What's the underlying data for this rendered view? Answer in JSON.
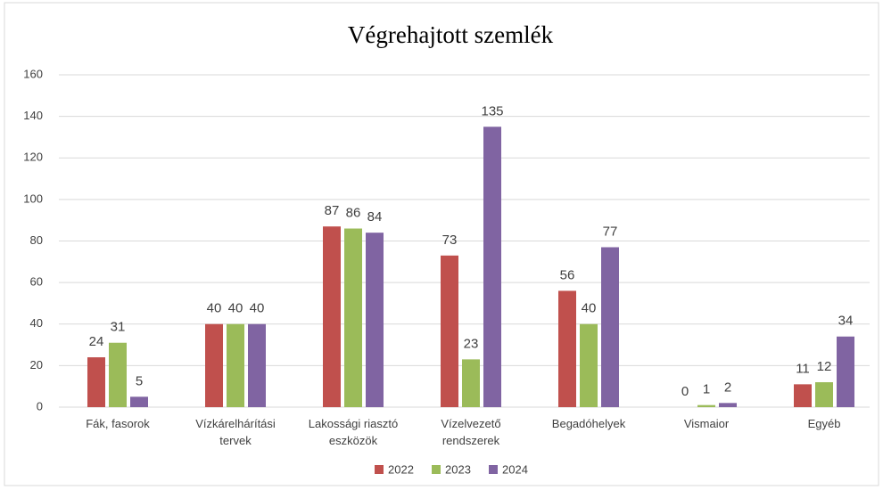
{
  "chart_data": {
    "type": "bar",
    "title": "Végrehajtott  szemlék",
    "categories": [
      "Fák, fasorok",
      "Vízkárelhárítási\ntervek",
      "Lakossági riasztó\neszközök",
      "Vízelvezető\nrendszerek",
      "Begadóhelyek",
      "Vismaior",
      "Egyéb"
    ],
    "series": [
      {
        "name": "2022",
        "color": "#c0504d",
        "values": [
          24,
          40,
          87,
          73,
          56,
          0,
          11
        ]
      },
      {
        "name": "2023",
        "color": "#9bbb59",
        "values": [
          31,
          40,
          86,
          23,
          40,
          1,
          12
        ]
      },
      {
        "name": "2024",
        "color": "#8064a2",
        "values": [
          5,
          40,
          84,
          135,
          77,
          2,
          34
        ]
      }
    ],
    "ylim": [
      0,
      160
    ],
    "yticks": [
      0,
      20,
      40,
      60,
      80,
      100,
      120,
      140,
      160
    ],
    "grid": true,
    "legend": "bottom"
  }
}
